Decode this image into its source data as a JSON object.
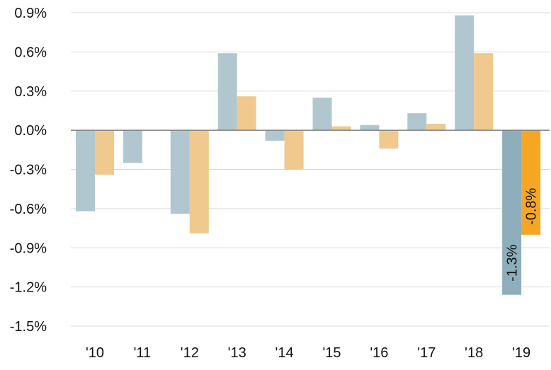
{
  "chart_data": {
    "type": "bar",
    "categories": [
      "'10",
      "'11",
      "'12",
      "'13",
      "'14",
      "'15",
      "'16",
      "'17",
      "'18",
      "'19"
    ],
    "series": [
      {
        "values": [
          -0.62,
          -0.25,
          -0.64,
          0.59,
          -0.08,
          0.25,
          0.04,
          0.13,
          0.88,
          -1.26
        ]
      },
      {
        "values": [
          -0.34,
          0.0,
          -0.79,
          0.26,
          -0.3,
          0.03,
          -0.14,
          0.05,
          0.59,
          -0.8
        ]
      }
    ],
    "colors": {
      "series1": "#b0c7d0",
      "series2": "#efc98e",
      "series1_highlight": "#8eaebc",
      "series2_highlight": "#f5a623"
    },
    "highlight_category": "'19",
    "annotations": [
      {
        "category": "'19",
        "series": 0,
        "text": "-1.3%"
      },
      {
        "category": "'19",
        "series": 1,
        "text": "-0.8%"
      }
    ],
    "y_ticks": [
      0.9,
      0.6,
      0.3,
      0.0,
      -0.3,
      -0.6,
      -0.9,
      -1.2,
      -1.5
    ],
    "y_tick_labels": [
      "0.9%",
      "0.6%",
      "0.3%",
      "0.0%",
      "-0.3%",
      "-0.6%",
      "-0.9%",
      "-1.2%",
      "-1.5%"
    ],
    "ylim": [
      -1.5,
      0.9
    ],
    "grid": true,
    "title": "",
    "xlabel": "",
    "ylabel": ""
  }
}
